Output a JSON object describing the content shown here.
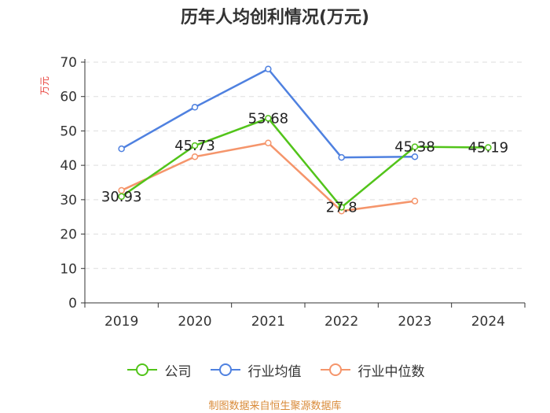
{
  "chart_data": {
    "type": "line",
    "title": "历年人均创利情况(万元)",
    "ylabel": "万元",
    "xlabel": "",
    "categories": [
      "2019",
      "2020",
      "2021",
      "2022",
      "2023",
      "2024"
    ],
    "ylim": [
      0,
      70
    ],
    "yticks": [
      0,
      10,
      20,
      30,
      40,
      50,
      60,
      70
    ],
    "grid": true,
    "legend_position": "bottom",
    "series": [
      {
        "name": "公司",
        "color": "#52c41a",
        "values": [
          30.93,
          45.73,
          53.68,
          27.8,
          45.38,
          45.19
        ],
        "labels": [
          "30.93",
          "45.73",
          "53.68",
          "27.8",
          "45.38",
          "45.19"
        ]
      },
      {
        "name": "行业均值",
        "color": "#4f81e0",
        "values": [
          44.8,
          56.9,
          68.0,
          42.3,
          42.5,
          null
        ]
      },
      {
        "name": "行业中位数",
        "color": "#f5956b",
        "values": [
          32.7,
          42.5,
          46.5,
          26.7,
          29.6,
          null
        ]
      }
    ]
  },
  "footer": {
    "source": "制图数据来自恒生聚源数据库"
  }
}
